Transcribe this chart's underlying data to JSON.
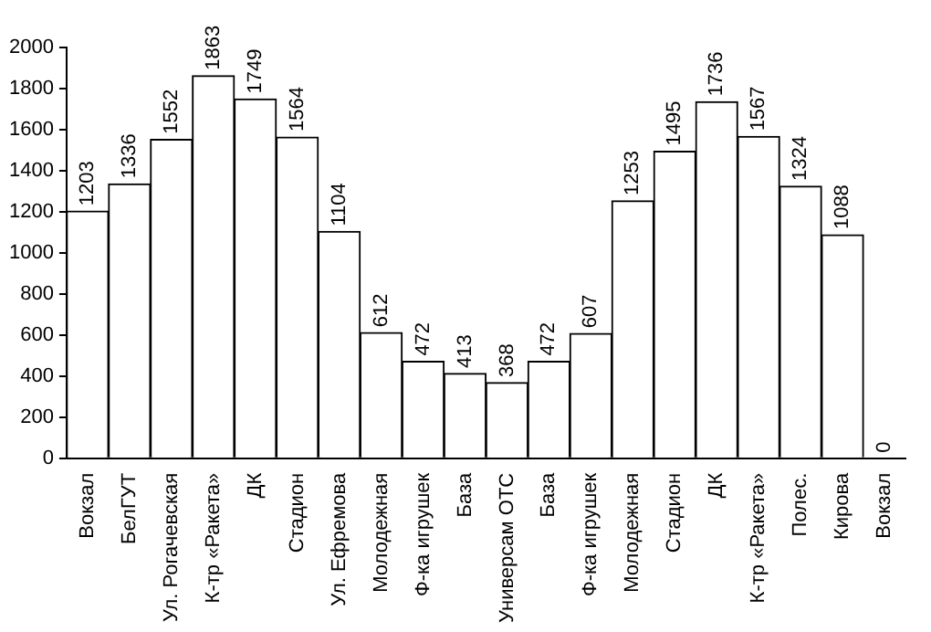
{
  "chart_data": {
    "type": "bar",
    "categories": [
      "Вокзал",
      "БелГУТ",
      "Ул. Рогачевская",
      "К-тр «Ракета»",
      "ДК",
      "Стадион",
      "Ул. Ефремова",
      "Молодежная",
      "Ф-ка игрушек",
      "База",
      "Универсам ОТС",
      "База",
      "Ф-ка игрушек",
      "Молодежная",
      "Стадион",
      "ДК",
      "К-тр «Ракета»",
      "Полес.",
      "Кирова",
      "Вокзал"
    ],
    "values": [
      1203,
      1336,
      1552,
      1863,
      1749,
      1564,
      1104,
      612,
      472,
      413,
      368,
      472,
      607,
      1253,
      1495,
      1736,
      1567,
      1324,
      1088,
      0
    ],
    "color": "#ffffff",
    "ylim": [
      0,
      2000
    ],
    "yticks": [
      0,
      200,
      400,
      600,
      800,
      1000,
      1200,
      1400,
      1600,
      1800,
      2000
    ],
    "grid": false,
    "legend": false,
    "data_labels": true
  }
}
